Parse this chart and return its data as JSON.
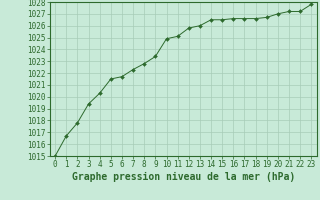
{
  "x": [
    0,
    1,
    2,
    3,
    4,
    5,
    6,
    7,
    8,
    9,
    10,
    11,
    12,
    13,
    14,
    15,
    16,
    17,
    18,
    19,
    20,
    21,
    22,
    23
  ],
  "y": [
    1015.0,
    1016.7,
    1017.8,
    1019.4,
    1020.3,
    1021.5,
    1021.7,
    1022.3,
    1022.8,
    1023.4,
    1024.9,
    1025.1,
    1025.8,
    1026.0,
    1026.5,
    1026.5,
    1026.6,
    1026.6,
    1026.6,
    1026.7,
    1027.0,
    1027.2,
    1027.2,
    1027.8
  ],
  "ylim": [
    1015,
    1028
  ],
  "xlim": [
    0,
    23
  ],
  "yticks": [
    1015,
    1016,
    1017,
    1018,
    1019,
    1020,
    1021,
    1022,
    1023,
    1024,
    1025,
    1026,
    1027,
    1028
  ],
  "xticks": [
    0,
    1,
    2,
    3,
    4,
    5,
    6,
    7,
    8,
    9,
    10,
    11,
    12,
    13,
    14,
    15,
    16,
    17,
    18,
    19,
    20,
    21,
    22,
    23
  ],
  "xlabel": "Graphe pression niveau de la mer (hPa)",
  "line_color": "#2d6a2d",
  "marker_color": "#2d6a2d",
  "bg_color": "#c8ead8",
  "grid_color": "#a8ccb8",
  "tick_color": "#2d6a2d",
  "xlabel_color": "#2d6a2d",
  "xlabel_fontsize": 7,
  "tick_fontsize": 5.5
}
